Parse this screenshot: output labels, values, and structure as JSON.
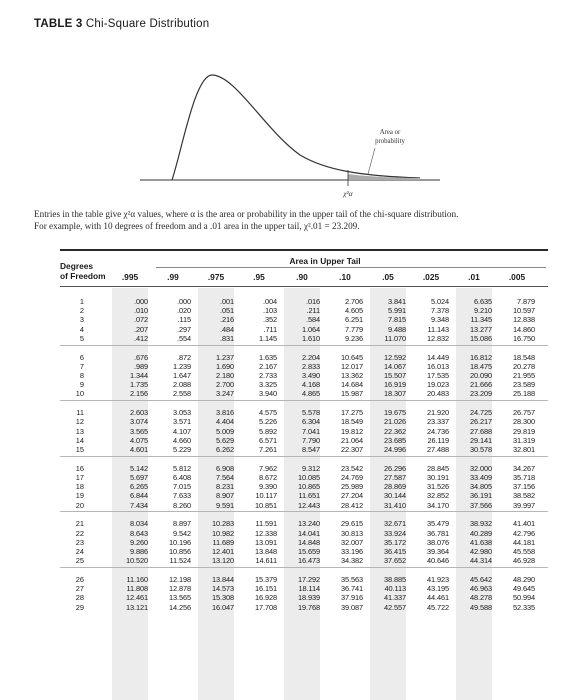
{
  "title": {
    "label": "TABLE 3",
    "name": "Chi-Square Distribution"
  },
  "figure": {
    "area_label_line1": "Area or",
    "area_label_line2": "probability",
    "axis_symbol": "χ²α"
  },
  "intro": {
    "line1": "Entries in the table give χ²α values, where α is the area or probability in the upper tail of the chi-square distribution.",
    "line2": "For example, with 10 degrees of freedom and a .01 area in the upper tail, χ².01 = 23.209."
  },
  "table": {
    "upper_tail_header": "Area in Upper Tail",
    "df_header_line1": "Degrees",
    "df_header_line2": "of Freedom",
    "columns": [
      ".995",
      ".99",
      ".975",
      ".95",
      ".90",
      ".10",
      ".05",
      ".025",
      ".01",
      ".005"
    ],
    "rows": [
      [
        "1",
        ".000",
        ".000",
        ".001",
        ".004",
        ".016",
        "2.706",
        "3.841",
        "5.024",
        "6.635",
        "7.879"
      ],
      [
        "2",
        ".010",
        ".020",
        ".051",
        ".103",
        ".211",
        "4.605",
        "5.991",
        "7.378",
        "9.210",
        "10.597"
      ],
      [
        "3",
        ".072",
        ".115",
        ".216",
        ".352",
        ".584",
        "6.251",
        "7.815",
        "9.348",
        "11.345",
        "12.838"
      ],
      [
        "4",
        ".207",
        ".297",
        ".484",
        ".711",
        "1.064",
        "7.779",
        "9.488",
        "11.143",
        "13.277",
        "14.860"
      ],
      [
        "5",
        ".412",
        ".554",
        ".831",
        "1.145",
        "1.610",
        "9.236",
        "11.070",
        "12.832",
        "15.086",
        "16.750"
      ],
      [
        "6",
        ".676",
        ".872",
        "1.237",
        "1.635",
        "2.204",
        "10.645",
        "12.592",
        "14.449",
        "16.812",
        "18.548"
      ],
      [
        "7",
        ".989",
        "1.239",
        "1.690",
        "2.167",
        "2.833",
        "12.017",
        "14.067",
        "16.013",
        "18.475",
        "20.278"
      ],
      [
        "8",
        "1.344",
        "1.647",
        "2.180",
        "2.733",
        "3.490",
        "13.362",
        "15.507",
        "17.535",
        "20.090",
        "21.955"
      ],
      [
        "9",
        "1.735",
        "2.088",
        "2.700",
        "3.325",
        "4.168",
        "14.684",
        "16.919",
        "19.023",
        "21.666",
        "23.589"
      ],
      [
        "10",
        "2.156",
        "2.558",
        "3.247",
        "3.940",
        "4.865",
        "15.987",
        "18.307",
        "20.483",
        "23.209",
        "25.188"
      ],
      [
        "11",
        "2.603",
        "3.053",
        "3.816",
        "4.575",
        "5.578",
        "17.275",
        "19.675",
        "21.920",
        "24.725",
        "26.757"
      ],
      [
        "12",
        "3.074",
        "3.571",
        "4.404",
        "5.226",
        "6.304",
        "18.549",
        "21.026",
        "23.337",
        "26.217",
        "28.300"
      ],
      [
        "13",
        "3.565",
        "4.107",
        "5.009",
        "5.892",
        "7.041",
        "19.812",
        "22.362",
        "24.736",
        "27.688",
        "29.819"
      ],
      [
        "14",
        "4.075",
        "4.660",
        "5.629",
        "6.571",
        "7.790",
        "21.064",
        "23.685",
        "26.119",
        "29.141",
        "31.319"
      ],
      [
        "15",
        "4.601",
        "5.229",
        "6.262",
        "7.261",
        "8.547",
        "22.307",
        "24.996",
        "27.488",
        "30.578",
        "32.801"
      ],
      [
        "16",
        "5.142",
        "5.812",
        "6.908",
        "7.962",
        "9.312",
        "23.542",
        "26.296",
        "28.845",
        "32.000",
        "34.267"
      ],
      [
        "17",
        "5.697",
        "6.408",
        "7.564",
        "8.672",
        "10.085",
        "24.769",
        "27.587",
        "30.191",
        "33.409",
        "35.718"
      ],
      [
        "18",
        "6.265",
        "7.015",
        "8.231",
        "9.390",
        "10.865",
        "25.989",
        "28.869",
        "31.526",
        "34.805",
        "37.156"
      ],
      [
        "19",
        "6.844",
        "7.633",
        "8.907",
        "10.117",
        "11.651",
        "27.204",
        "30.144",
        "32.852",
        "36.191",
        "38.582"
      ],
      [
        "20",
        "7.434",
        "8.260",
        "9.591",
        "10.851",
        "12.443",
        "28.412",
        "31.410",
        "34.170",
        "37.566",
        "39.997"
      ],
      [
        "21",
        "8.034",
        "8.897",
        "10.283",
        "11.591",
        "13.240",
        "29.615",
        "32.671",
        "35.479",
        "38.932",
        "41.401"
      ],
      [
        "22",
        "8.643",
        "9.542",
        "10.982",
        "12.338",
        "14.041",
        "30.813",
        "33.924",
        "36.781",
        "40.289",
        "42.796"
      ],
      [
        "23",
        "9.260",
        "10.196",
        "11.689",
        "13.091",
        "14.848",
        "32.007",
        "35.172",
        "38.076",
        "41.638",
        "44.181"
      ],
      [
        "24",
        "9.886",
        "10.856",
        "12.401",
        "13.848",
        "15.659",
        "33.196",
        "36.415",
        "39.364",
        "42.980",
        "45.558"
      ],
      [
        "25",
        "10.520",
        "11.524",
        "13.120",
        "14.611",
        "16.473",
        "34.382",
        "37.652",
        "40.646",
        "44.314",
        "46.928"
      ],
      [
        "26",
        "11.160",
        "12.198",
        "13.844",
        "15.379",
        "17.292",
        "35.563",
        "38.885",
        "41.923",
        "45.642",
        "48.290"
      ],
      [
        "27",
        "11.808",
        "12.878",
        "14.573",
        "16.151",
        "18.114",
        "36.741",
        "40.113",
        "43.195",
        "46.963",
        "49.645"
      ],
      [
        "28",
        "12.461",
        "13.565",
        "15.308",
        "16.928",
        "18.939",
        "37.916",
        "41.337",
        "44.461",
        "48.278",
        "50.994"
      ],
      [
        "29",
        "13.121",
        "14.256",
        "16.047",
        "17.708",
        "19.768",
        "39.087",
        "42.557",
        "45.722",
        "49.588",
        "52.335"
      ]
    ]
  }
}
